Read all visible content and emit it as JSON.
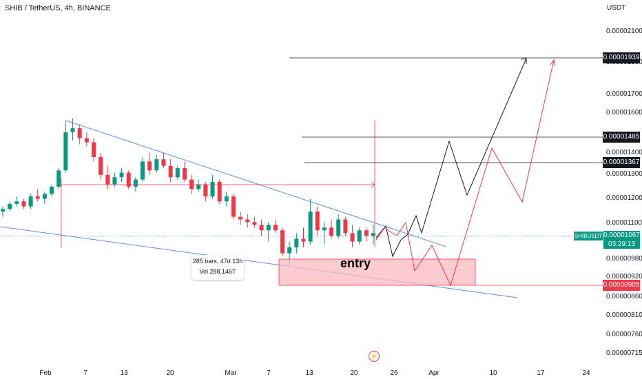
{
  "header": {
    "title": "SHIB / TetherUS, 4h, BINANCE",
    "currency": "USDT"
  },
  "axes": {
    "y_ticks": [
      "0.00002100",
      "0.00001900",
      "0.00001700",
      "0.00001600",
      "0.00001400",
      "0.00001300",
      "0.00001200",
      "0.00001100",
      "0.00000980",
      "0.00000920",
      "0.00000860",
      "0.00000810",
      "0.00000760",
      "0.00000715"
    ],
    "x_ticks": [
      "Feb",
      "7",
      "13",
      "20",
      "Mar",
      "7",
      "13",
      "20",
      "26",
      "Apr",
      "10",
      "17",
      "24"
    ]
  },
  "price_tags": [
    {
      "value": "0.00001939",
      "color": "#131722"
    },
    {
      "value": "0.00001485",
      "color": "#131722"
    },
    {
      "value": "0.00001367",
      "color": "#131722"
    },
    {
      "value": "0.00000905",
      "color": "#f23645"
    }
  ],
  "current": {
    "ticker": "SHIBUSDT",
    "price": "0.00001067",
    "countdown": "03:29:13",
    "color": "#089981"
  },
  "annotations": {
    "measure_bars": "285 bars, 47d 13h",
    "measure_vol": "Vol 288.146T",
    "entry": "entry"
  },
  "icons": {
    "flash": "lightning-icon"
  },
  "chart_data": {
    "type": "candlestick",
    "symbol": "SHIB / TetherUS",
    "interval": "4h",
    "exchange": "BINANCE",
    "y_scale": "log",
    "ylim": [
      7e-06,
      2.18e-05
    ],
    "y_ticks": [
      2.1e-05,
      1.9e-05,
      1.7e-05,
      1.6e-05,
      1.4e-05,
      1.3e-05,
      1.2e-05,
      1.1e-05,
      9.8e-06,
      9.2e-06,
      8.6e-06,
      8.1e-06,
      7.6e-06,
      7.15e-06
    ],
    "candles_approx": [
      [
        1.15e-05,
        1.17e-05,
        1.13e-05,
        1.16e-05
      ],
      [
        1.16e-05,
        1.19e-05,
        1.15e-05,
        1.18e-05
      ],
      [
        1.18e-05,
        1.21e-05,
        1.17e-05,
        1.19e-05
      ],
      [
        1.19e-05,
        1.2e-05,
        1.16e-05,
        1.17e-05
      ],
      [
        1.17e-05,
        1.22e-05,
        1.16e-05,
        1.21e-05
      ],
      [
        1.21e-05,
        1.24e-05,
        1.19e-05,
        1.2e-05
      ],
      [
        1.2e-05,
        1.23e-05,
        1.18e-05,
        1.22e-05
      ],
      [
        1.22e-05,
        1.26e-05,
        1.21e-05,
        1.25e-05
      ],
      [
        1.25e-05,
        1.33e-05,
        1.24e-05,
        1.32e-05
      ],
      [
        1.32e-05,
        1.56e-05,
        1.31e-05,
        1.5e-05
      ],
      [
        1.5e-05,
        1.57e-05,
        1.46e-05,
        1.52e-05
      ],
      [
        1.52e-05,
        1.54e-05,
        1.44e-05,
        1.47e-05
      ],
      [
        1.47e-05,
        1.5e-05,
        1.43e-05,
        1.45e-05
      ],
      [
        1.45e-05,
        1.47e-05,
        1.36e-05,
        1.38e-05
      ],
      [
        1.38e-05,
        1.4e-05,
        1.28e-05,
        1.3e-05
      ],
      [
        1.3e-05,
        1.34e-05,
        1.24e-05,
        1.26e-05
      ],
      [
        1.26e-05,
        1.31e-05,
        1.25e-05,
        1.29e-05
      ],
      [
        1.29e-05,
        1.33e-05,
        1.27e-05,
        1.31e-05
      ],
      [
        1.31e-05,
        1.32e-05,
        1.24e-05,
        1.25e-05
      ],
      [
        1.25e-05,
        1.29e-05,
        1.23e-05,
        1.28e-05
      ],
      [
        1.28e-05,
        1.38e-05,
        1.27e-05,
        1.36e-05
      ],
      [
        1.36e-05,
        1.4e-05,
        1.3e-05,
        1.32e-05
      ],
      [
        1.32e-05,
        1.39e-05,
        1.31e-05,
        1.37e-05
      ],
      [
        1.37e-05,
        1.4e-05,
        1.33e-05,
        1.34e-05
      ],
      [
        1.34e-05,
        1.37e-05,
        1.27e-05,
        1.29e-05
      ],
      [
        1.29e-05,
        1.34e-05,
        1.28e-05,
        1.33e-05
      ],
      [
        1.33e-05,
        1.36e-05,
        1.27e-05,
        1.28e-05
      ],
      [
        1.28e-05,
        1.3e-05,
        1.22e-05,
        1.24e-05
      ],
      [
        1.24e-05,
        1.28e-05,
        1.23e-05,
        1.26e-05
      ],
      [
        1.26e-05,
        1.27e-05,
        1.19e-05,
        1.21e-05
      ],
      [
        1.21e-05,
        1.3e-05,
        1.2e-05,
        1.27e-05
      ],
      [
        1.27e-05,
        1.28e-05,
        1.18e-05,
        1.19e-05
      ],
      [
        1.19e-05,
        1.23e-05,
        1.17e-05,
        1.21e-05
      ],
      [
        1.21e-05,
        1.22e-05,
        1.12e-05,
        1.13e-05
      ],
      [
        1.13e-05,
        1.15e-05,
        1.1e-05,
        1.12e-05
      ],
      [
        1.12e-05,
        1.14e-05,
        1.09e-05,
        1.11e-05
      ],
      [
        1.11e-05,
        1.13e-05,
        1.09e-05,
        1.1e-05
      ],
      [
        1.1e-05,
        1.12e-05,
        1.06e-05,
        1.08e-05
      ],
      [
        1.08e-05,
        1.11e-05,
        1.04e-05,
        1.1e-05
      ],
      [
        1.1e-05,
        1.12e-05,
        1.07e-05,
        1.08e-05
      ],
      [
        1.08e-05,
        1.09e-05,
        9.9e-06,
        1e-05
      ],
      [
        1e-05,
        1.04e-05,
        9.6e-06,
        1.02e-05
      ],
      [
        1.02e-05,
        1.07e-05,
        1e-05,
        1.05e-05
      ],
      [
        1.05e-05,
        1.09e-05,
        1.02e-05,
        1.04e-05
      ],
      [
        1.04e-05,
        1.2e-05,
        1.03e-05,
        1.15e-05
      ],
      [
        1.15e-05,
        1.17e-05,
        1.06e-05,
        1.08e-05
      ],
      [
        1.08e-05,
        1.11e-05,
        1.03e-05,
        1.09e-05
      ],
      [
        1.09e-05,
        1.12e-05,
        1.05e-05,
        1.06e-05
      ],
      [
        1.06e-05,
        1.14e-05,
        1.05e-05,
        1.12e-05
      ],
      [
        1.12e-05,
        1.13e-05,
        1.06e-05,
        1.07e-05
      ],
      [
        1.07e-05,
        1.1e-05,
        1.02e-05,
        1.04e-05
      ],
      [
        1.04e-05,
        1.09e-05,
        1.03e-05,
        1.08e-05
      ],
      [
        1.08e-05,
        1.09e-05,
        1.04e-05,
        1.06e-05
      ],
      [
        1.06e-05,
        1.1e-05,
        1.03e-05,
        1.07e-05
      ]
    ],
    "last_price": 1.067e-05,
    "horizontal_levels": [
      1.939e-05,
      1.485e-05,
      1.367e-05,
      9.05e-06
    ],
    "entry_zone": [
      9.05e-06,
      9.9e-06
    ]
  }
}
